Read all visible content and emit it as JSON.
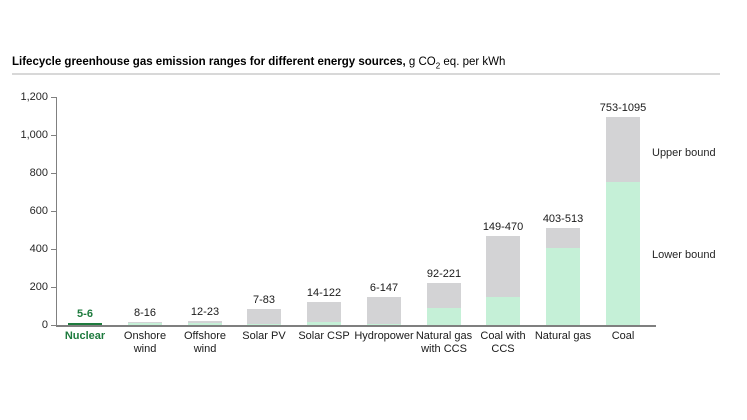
{
  "header": {
    "title_bold": "Lifecycle greenhouse gas emission ranges for different energy sources,",
    "title_unit_prefix": " g CO",
    "title_unit_sub": "2",
    "title_unit_suffix": " eq. per kWh"
  },
  "chart_data": {
    "type": "bar",
    "subtype": "stacked-range",
    "title": "Lifecycle greenhouse gas emission ranges for different energy sources, g CO2 eq. per kWh",
    "categories": [
      "Nuclear",
      "Onshore wind",
      "Offshore wind",
      "Solar PV",
      "Solar CSP",
      "Hydropower",
      "Natural gas with CCS",
      "Coal with CCS",
      "Natural gas",
      "Coal"
    ],
    "series": [
      {
        "name": "Lower bound",
        "values": [
          5,
          8,
          12,
          7,
          14,
          6,
          92,
          149,
          403,
          753
        ]
      },
      {
        "name": "Upper bound",
        "values": [
          6,
          16,
          23,
          83,
          122,
          147,
          221,
          470,
          513,
          1095
        ]
      }
    ],
    "bar_labels": [
      "5-6",
      "8-16",
      "12-23",
      "7-83",
      "14-122",
      "6-147",
      "92-221",
      "149-470",
      "403-513",
      "753-1095"
    ],
    "highlighted_category": "Nuclear",
    "xlabel": "",
    "ylabel": "",
    "ylim": [
      0,
      1200
    ],
    "ytick_step": 200,
    "ytick_labels": [
      "0",
      "200",
      "400",
      "600",
      "800",
      "1,000",
      "1,200"
    ],
    "grid": false,
    "legend_position": "right-annotations",
    "annotations": [
      {
        "text": "Upper bound"
      },
      {
        "text": "Lower bound"
      }
    ],
    "colors": {
      "lower_bound": "#c5f0d7",
      "upper_bound": "#d3d3d5",
      "highlight": "#1e7b3e",
      "axis": "#808080",
      "label_text": "#1a1a1a"
    }
  }
}
